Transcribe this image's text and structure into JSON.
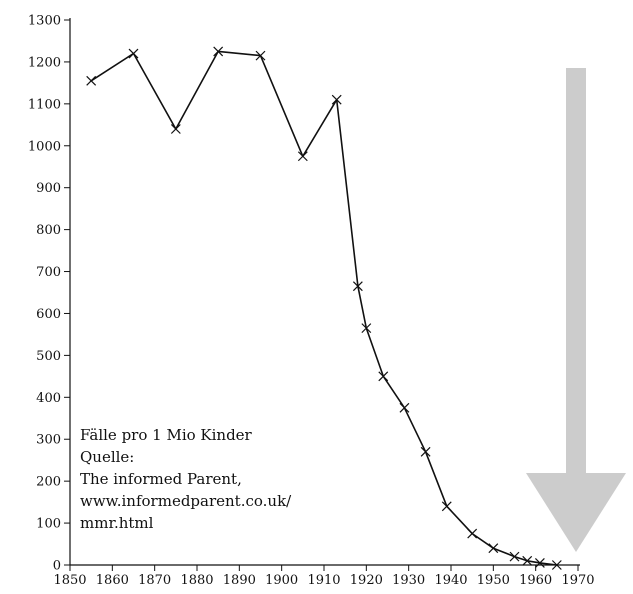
{
  "chart_data": {
    "type": "line",
    "title": "",
    "xlabel": "",
    "ylabel": "",
    "xlim": [
      1850,
      1970
    ],
    "ylim": [
      0,
      1300
    ],
    "x_ticks": [
      1850,
      1860,
      1870,
      1880,
      1890,
      1900,
      1910,
      1920,
      1930,
      1940,
      1950,
      1960,
      1970
    ],
    "y_ticks": [
      0,
      100,
      200,
      300,
      400,
      500,
      600,
      700,
      800,
      900,
      1000,
      1100,
      1200,
      1300
    ],
    "grid": false,
    "legend": "none",
    "marker": "x",
    "series": [
      {
        "x": [
          1855,
          1865,
          1875,
          1885,
          1895,
          1905,
          1913,
          1918,
          1920,
          1924,
          1929,
          1934,
          1939,
          1945,
          1950,
          1955,
          1958,
          1961,
          1965
        ],
        "y": [
          1155,
          1220,
          1040,
          1225,
          1215,
          975,
          1110,
          665,
          565,
          450,
          375,
          270,
          140,
          75,
          40,
          20,
          10,
          5,
          0
        ]
      }
    ],
    "annotation": {
      "lines": [
        "Fälle pro 1 Mio Kinder",
        "Quelle:",
        "The informed Parent,",
        "www.informedparent.co.uk/",
        "mmr.html"
      ]
    },
    "arrow": {
      "direction": "down",
      "color": "#cccccc"
    },
    "colors": {
      "line": "#111111",
      "axis": "#111111",
      "arrow": "#cccccc"
    }
  }
}
